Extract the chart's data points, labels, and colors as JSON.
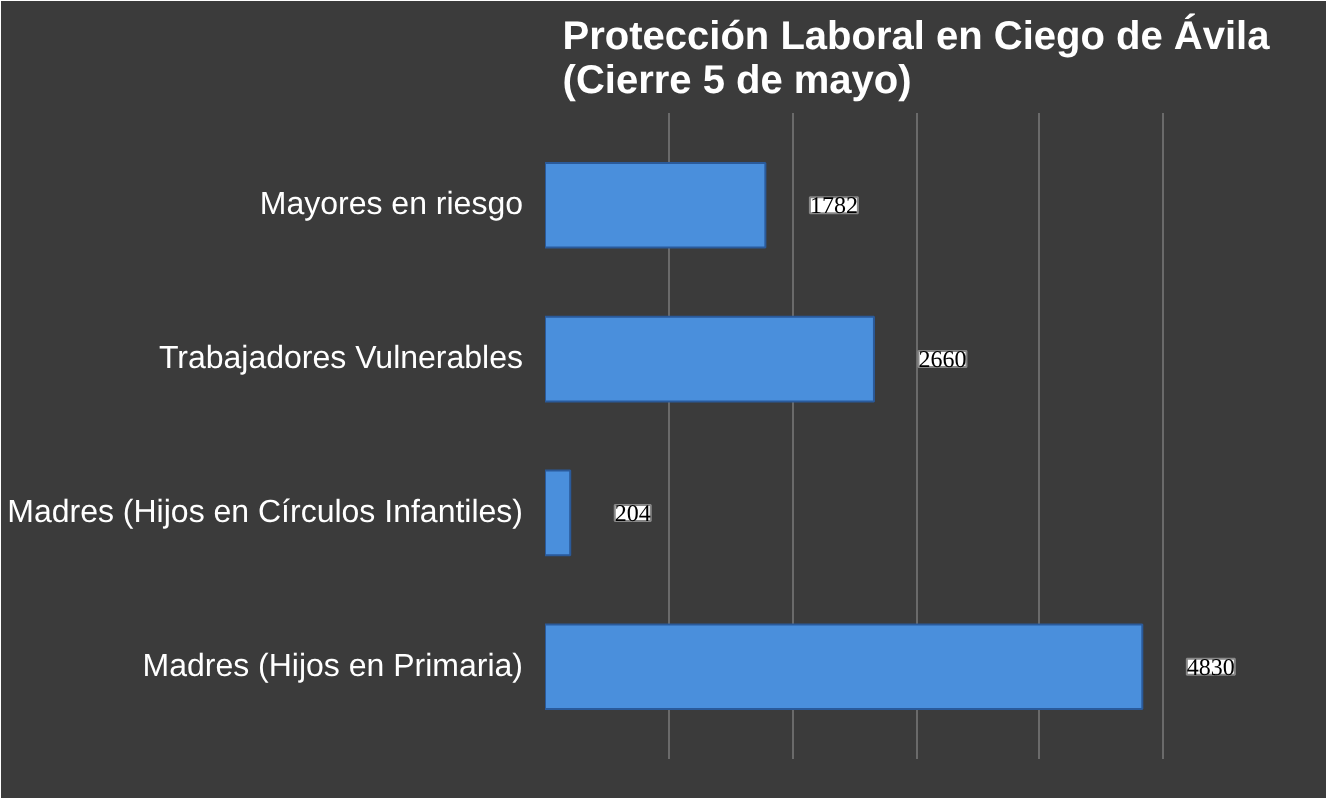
{
  "chart_data": {
    "type": "bar",
    "orientation": "horizontal",
    "title": "Protección Laboral en Ciego de Ávila\n(Cierre 5 de mayo)",
    "categories": [
      "Mayores en riesgo",
      "Trabajadores Vulnerables",
      "Madres (Hijos en Círculos Infantiles)",
      "Madres (Hijos en Primaria)"
    ],
    "values": [
      1782,
      2660,
      204,
      4830
    ],
    "color": "#4a8fdc",
    "xlim": [
      0,
      6000
    ],
    "xticks": [
      {
        "value": 0,
        "label": null
      },
      {
        "value": 1000,
        "label": null
      },
      {
        "value": 2000,
        "label": null
      },
      {
        "value": 3000,
        "label": null
      },
      {
        "value": 4000,
        "label": null
      },
      {
        "value": 5000,
        "label": null
      },
      {
        "value": 6000,
        "label": null
      }
    ],
    "grid": "x",
    "tick_labels": "y",
    "data_labels": true
  }
}
